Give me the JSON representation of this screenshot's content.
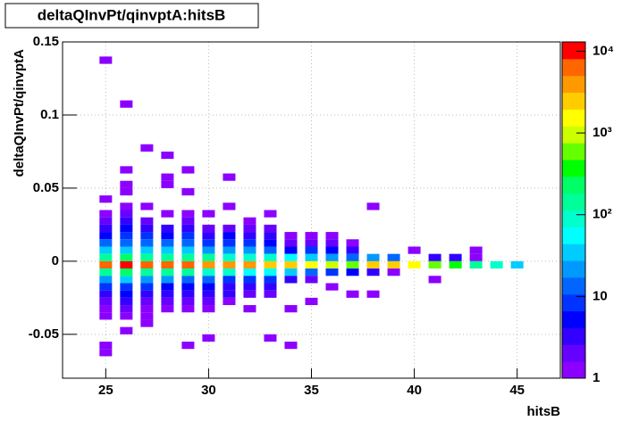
{
  "chart_data": {
    "type": "heatmap",
    "title": "deltaQInvPt/qinvptA:hitsB",
    "x_label": "hitsB",
    "y_label": "deltaQInvPt/qinvptA",
    "xlim": [
      22.9,
      47.1
    ],
    "ylim": [
      -0.08,
      0.15
    ],
    "xticks": [
      25,
      30,
      35,
      40,
      45
    ],
    "yticks": [
      -0.05,
      0,
      0.05,
      0.1,
      0.15
    ],
    "zlim": [
      1,
      13000
    ],
    "zlog": true,
    "zticks": [
      1,
      10,
      {
        "value": 100,
        "label": "10²"
      },
      {
        "value": 1000,
        "label": "10³"
      },
      {
        "value": 10000,
        "label": "10⁴"
      }
    ],
    "grid": true,
    "colorscale": [
      "#8b00ff",
      "#6600ff",
      "#3300ff",
      "#0000ff",
      "#0033ff",
      "#0066ff",
      "#0099ff",
      "#00ccff",
      "#00ffff",
      "#00ffcc",
      "#00ff99",
      "#00ff66",
      "#00ff00",
      "#66ff00",
      "#ccff00",
      "#ffff00",
      "#ffcc00",
      "#ff9900",
      "#ff6600",
      "#ff0000"
    ],
    "x": [
      25,
      25,
      25,
      25,
      25,
      25,
      25,
      25,
      25,
      25,
      25,
      25,
      25,
      25,
      25,
      25,
      25,
      25,
      25,
      26,
      26,
      26,
      26,
      26,
      26,
      26,
      26,
      26,
      26,
      26,
      26,
      26,
      26,
      26,
      26,
      26,
      26,
      26,
      26,
      26,
      27,
      27,
      27,
      27,
      27,
      27,
      27,
      27,
      27,
      27,
      27,
      27,
      27,
      27,
      27,
      27,
      27,
      28,
      28,
      28,
      28,
      28,
      28,
      28,
      28,
      28,
      28,
      28,
      28,
      28,
      28,
      28,
      28,
      29,
      29,
      29,
      29,
      29,
      29,
      29,
      29,
      29,
      29,
      29,
      29,
      29,
      29,
      29,
      29,
      29,
      30,
      30,
      30,
      30,
      30,
      30,
      30,
      30,
      30,
      30,
      30,
      30,
      30,
      30,
      31,
      31,
      31,
      31,
      31,
      31,
      31,
      31,
      31,
      31,
      31,
      31,
      31,
      32,
      32,
      32,
      32,
      32,
      32,
      32,
      32,
      32,
      32,
      32,
      32,
      33,
      33,
      33,
      33,
      33,
      33,
      33,
      33,
      33,
      33,
      33,
      33,
      34,
      34,
      34,
      34,
      34,
      34,
      34,
      34,
      34,
      35,
      35,
      35,
      35,
      35,
      35,
      35,
      35,
      36,
      36,
      36,
      36,
      36,
      36,
      36,
      37,
      37,
      37,
      37,
      37,
      37,
      38,
      38,
      38,
      38,
      38,
      39,
      39,
      39,
      40,
      40,
      41,
      41,
      41,
      42,
      42,
      43,
      43,
      43,
      44,
      45
    ],
    "y": [
      0.135,
      0.04,
      0.03,
      0.025,
      0.02,
      0.015,
      0.01,
      0.005,
      0,
      -0.005,
      -0.01,
      -0.015,
      -0.02,
      -0.025,
      -0.03,
      -0.035,
      -0.04,
      -0.06,
      -0.065,
      0.105,
      0.06,
      0.05,
      0.045,
      0.035,
      0.03,
      0.025,
      0.02,
      0.015,
      0.01,
      0.005,
      0,
      -0.005,
      -0.01,
      -0.015,
      -0.02,
      -0.025,
      -0.03,
      -0.035,
      -0.04,
      -0.05,
      0.075,
      0.035,
      0.025,
      0.02,
      0.015,
      0.01,
      0.005,
      0,
      -0.005,
      -0.01,
      -0.015,
      -0.02,
      -0.025,
      -0.03,
      -0.035,
      -0.04,
      -0.045,
      0.07,
      0.055,
      0.05,
      0.03,
      0.02,
      0.015,
      0.01,
      0.005,
      0,
      -0.005,
      -0.01,
      -0.015,
      -0.02,
      -0.025,
      -0.03,
      -0.035,
      0.06,
      0.045,
      0.03,
      0.025,
      0.02,
      0.015,
      0.01,
      0.005,
      0,
      -0.005,
      -0.01,
      -0.015,
      -0.02,
      -0.025,
      -0.03,
      -0.035,
      -0.06,
      0.03,
      0.02,
      0.015,
      0.01,
      0.005,
      0,
      -0.005,
      -0.01,
      -0.015,
      -0.02,
      -0.025,
      -0.03,
      -0.035,
      -0.055,
      0.055,
      0.035,
      0.02,
      0.015,
      0.01,
      0.005,
      0,
      -0.005,
      -0.01,
      -0.015,
      -0.02,
      -0.025,
      -0.03,
      0.025,
      0.02,
      0.015,
      0.01,
      0.005,
      0,
      -0.005,
      -0.01,
      -0.015,
      -0.02,
      -0.025,
      -0.035,
      0.03,
      0.02,
      0.015,
      0.01,
      0.005,
      0,
      -0.005,
      -0.01,
      -0.015,
      -0.02,
      -0.025,
      -0.055,
      0.015,
      0.01,
      0.005,
      0,
      -0.005,
      -0.01,
      -0.015,
      -0.035,
      -0.06,
      0.015,
      0.01,
      0.005,
      0,
      -0.005,
      -0.01,
      -0.015,
      -0.03,
      0.015,
      0.01,
      0.005,
      0,
      -0.005,
      -0.01,
      -0.02,
      0.01,
      0.005,
      0,
      -0.005,
      -0.01,
      -0.025,
      0.035,
      0,
      -0.005,
      -0.01,
      -0.025,
      0,
      -0.005,
      -0.01,
      0.005,
      -0.005,
      0,
      -0.005,
      -0.015,
      0,
      -0.005,
      0.005,
      0,
      -0.005,
      -0.005,
      -0.005
    ],
    "values": [
      1,
      1,
      1,
      2,
      3,
      6,
      12,
      30,
      150,
      8000,
      150,
      25,
      8,
      4,
      2,
      1,
      1,
      1,
      1,
      1,
      1,
      1,
      1,
      1,
      2,
      3,
      5,
      8,
      15,
      40,
      200,
      9000,
      200,
      30,
      10,
      5,
      3,
      2,
      1,
      1,
      1,
      1,
      2,
      4,
      8,
      15,
      40,
      180,
      8000,
      150,
      20,
      8,
      4,
      2,
      1,
      1,
      1,
      1,
      1,
      1,
      1,
      3,
      6,
      12,
      35,
      150,
      7000,
      150,
      25,
      6,
      3,
      2,
      1,
      1,
      1,
      1,
      2,
      4,
      8,
      12,
      30,
      130,
      6000,
      120,
      15,
      5,
      3,
      2,
      1,
      1,
      1,
      2,
      4,
      10,
      25,
      120,
      5000,
      100,
      15,
      6,
      3,
      2,
      1,
      1,
      1,
      1,
      2,
      5,
      10,
      25,
      100,
      4000,
      80,
      10,
      4,
      3,
      1,
      1,
      2,
      3,
      8,
      20,
      90,
      4000,
      60,
      10,
      4,
      2,
      1,
      1,
      2,
      3,
      6,
      15,
      80,
      3000,
      50,
      8,
      3,
      2,
      1,
      1,
      2,
      6,
      60,
      2500,
      30,
      3,
      1,
      1,
      1,
      2,
      10,
      30,
      1500,
      15,
      2,
      1,
      1,
      2,
      5,
      20,
      800,
      8,
      1,
      1,
      3,
      15,
      600,
      5,
      1,
      1,
      20,
      2500,
      4,
      1,
      15,
      2000,
      1,
      1,
      1500,
      3,
      600,
      1,
      4,
      300,
      1,
      1,
      150,
      80,
      40
    ]
  }
}
